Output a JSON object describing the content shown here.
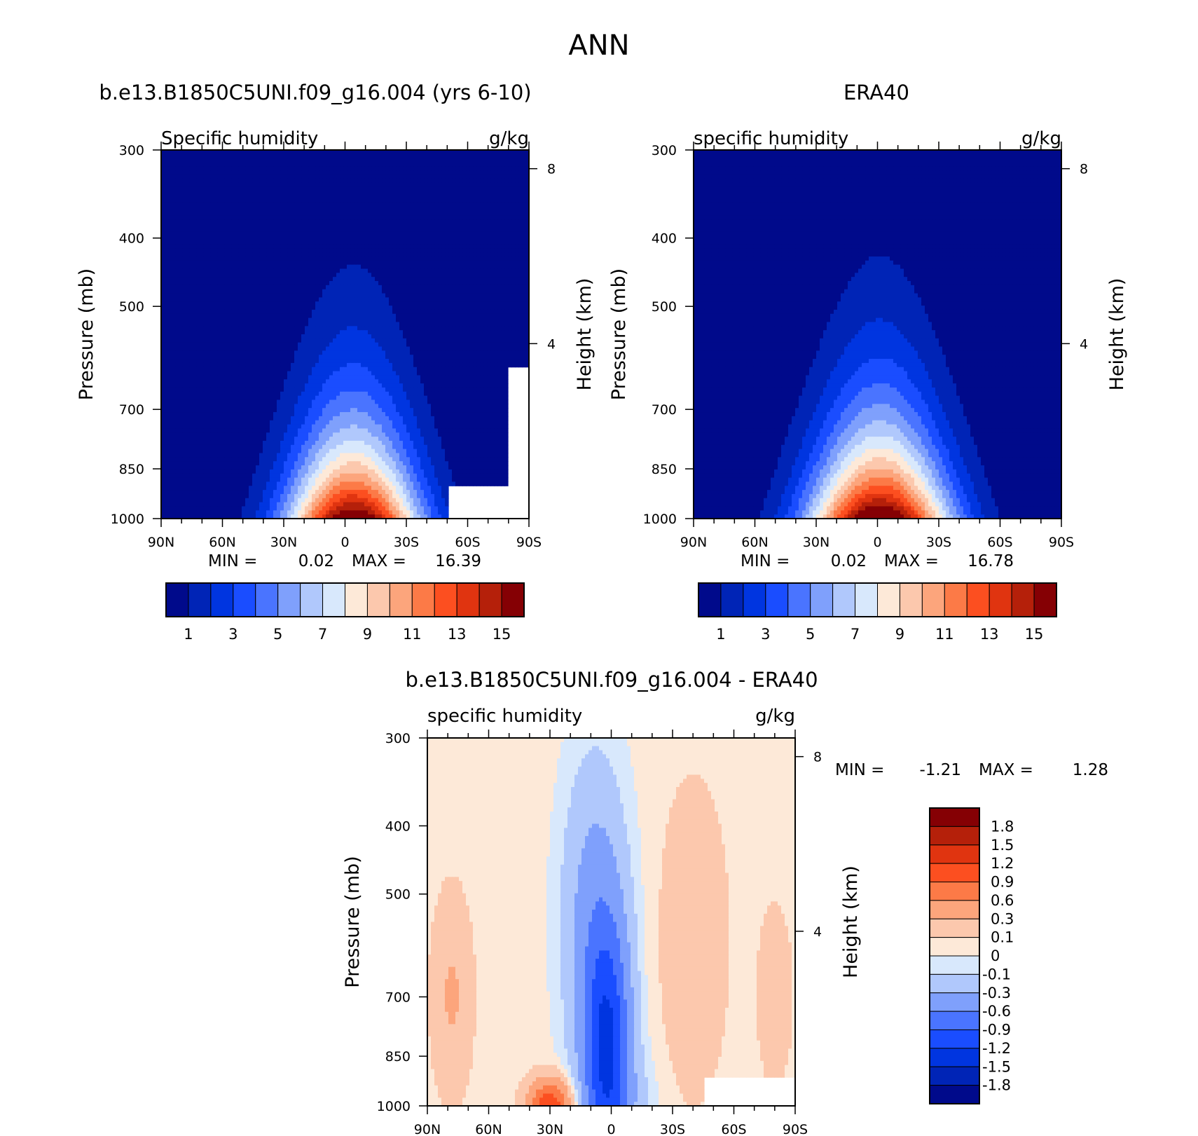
{
  "figure_title": "ANN",
  "chart_data": [
    {
      "type": "heatmap",
      "title": "b.e13.B1850C5UNI.f09_g16.004 (yrs 6-10)",
      "left_label": "Specific humidity",
      "right_label": "g/kg",
      "ylabel": "Pressure (mb)",
      "y2label": "Height (km)",
      "x_ticks": [
        "90N",
        "60N",
        "30N",
        "0",
        "30S",
        "60S",
        "90S"
      ],
      "y_ticks": [
        "300",
        "400",
        "500",
        "700",
        "850",
        "1000"
      ],
      "y2_ticks": [
        "8",
        "4"
      ],
      "stats": {
        "min_label": "MIN =",
        "min": "0.02",
        "max_label": "MAX =",
        "max": "16.39"
      },
      "colorbar_labels": [
        "1",
        "3",
        "5",
        "7",
        "9",
        "11",
        "13",
        "15"
      ],
      "colors": [
        "#000a8b",
        "#0024b6",
        "#0035e0",
        "#1a4dff",
        "#4a74ff",
        "#7fa0fc",
        "#b0c8fc",
        "#d8e8fc",
        "#fde9d8",
        "#fcc8ad",
        "#fca57c",
        "#fc7a47",
        "#fc4f20",
        "#e03410",
        "#b5200a",
        "#850004"
      ],
      "max_value": 16.39,
      "missing_region": "south of 50S below 900 mb"
    },
    {
      "type": "heatmap",
      "title": "ERA40",
      "left_label": "specific humidity",
      "right_label": "g/kg",
      "ylabel": "Pressure (mb)",
      "y2label": "Height (km)",
      "x_ticks": [
        "90N",
        "60N",
        "30N",
        "0",
        "30S",
        "60S",
        "90S"
      ],
      "y_ticks": [
        "300",
        "400",
        "500",
        "700",
        "850",
        "1000"
      ],
      "y2_ticks": [
        "8",
        "4"
      ],
      "stats": {
        "min_label": "MIN =",
        "min": "0.02",
        "max_label": "MAX =",
        "max": "16.78"
      },
      "colorbar_labels": [
        "1",
        "3",
        "5",
        "7",
        "9",
        "11",
        "13",
        "15"
      ],
      "max_value": 16.78
    },
    {
      "type": "heatmap",
      "title": "b.e13.B1850C5UNI.f09_g16.004 - ERA40",
      "left_label": "specific humidity",
      "right_label": "g/kg",
      "ylabel": "Pressure (mb)",
      "y2label": "Height (km)",
      "x_ticks": [
        "90N",
        "60N",
        "30N",
        "0",
        "30S",
        "60S",
        "90S"
      ],
      "y_ticks": [
        "300",
        "400",
        "500",
        "700",
        "850",
        "1000"
      ],
      "y2_ticks": [
        "8",
        "4"
      ],
      "stats": {
        "min_label": "MIN =",
        "min": "-1.21",
        "max_label": "MAX =",
        "max": "1.28"
      },
      "colorbar_labels": [
        "1.8",
        "1.5",
        "1.2",
        "0.9",
        "0.6",
        "0.3",
        "0.1",
        "0",
        "-0.1",
        "-0.3",
        "-0.6",
        "-0.9",
        "-1.2",
        "-1.5",
        "-1.8"
      ],
      "colors_top_to_bottom": [
        "#850004",
        "#b5200a",
        "#e03410",
        "#fc4f20",
        "#fc7a47",
        "#fca57c",
        "#fcc8ad",
        "#fde9d8",
        "#d8e8fc",
        "#b0c8fc",
        "#7fa0fc",
        "#4a74ff",
        "#1a4dff",
        "#0035e0",
        "#0024b6",
        "#000a8b"
      ],
      "min_value": -1.21,
      "max_value": 1.28,
      "missing_region": "south of 45S below 915 mb"
    }
  ]
}
